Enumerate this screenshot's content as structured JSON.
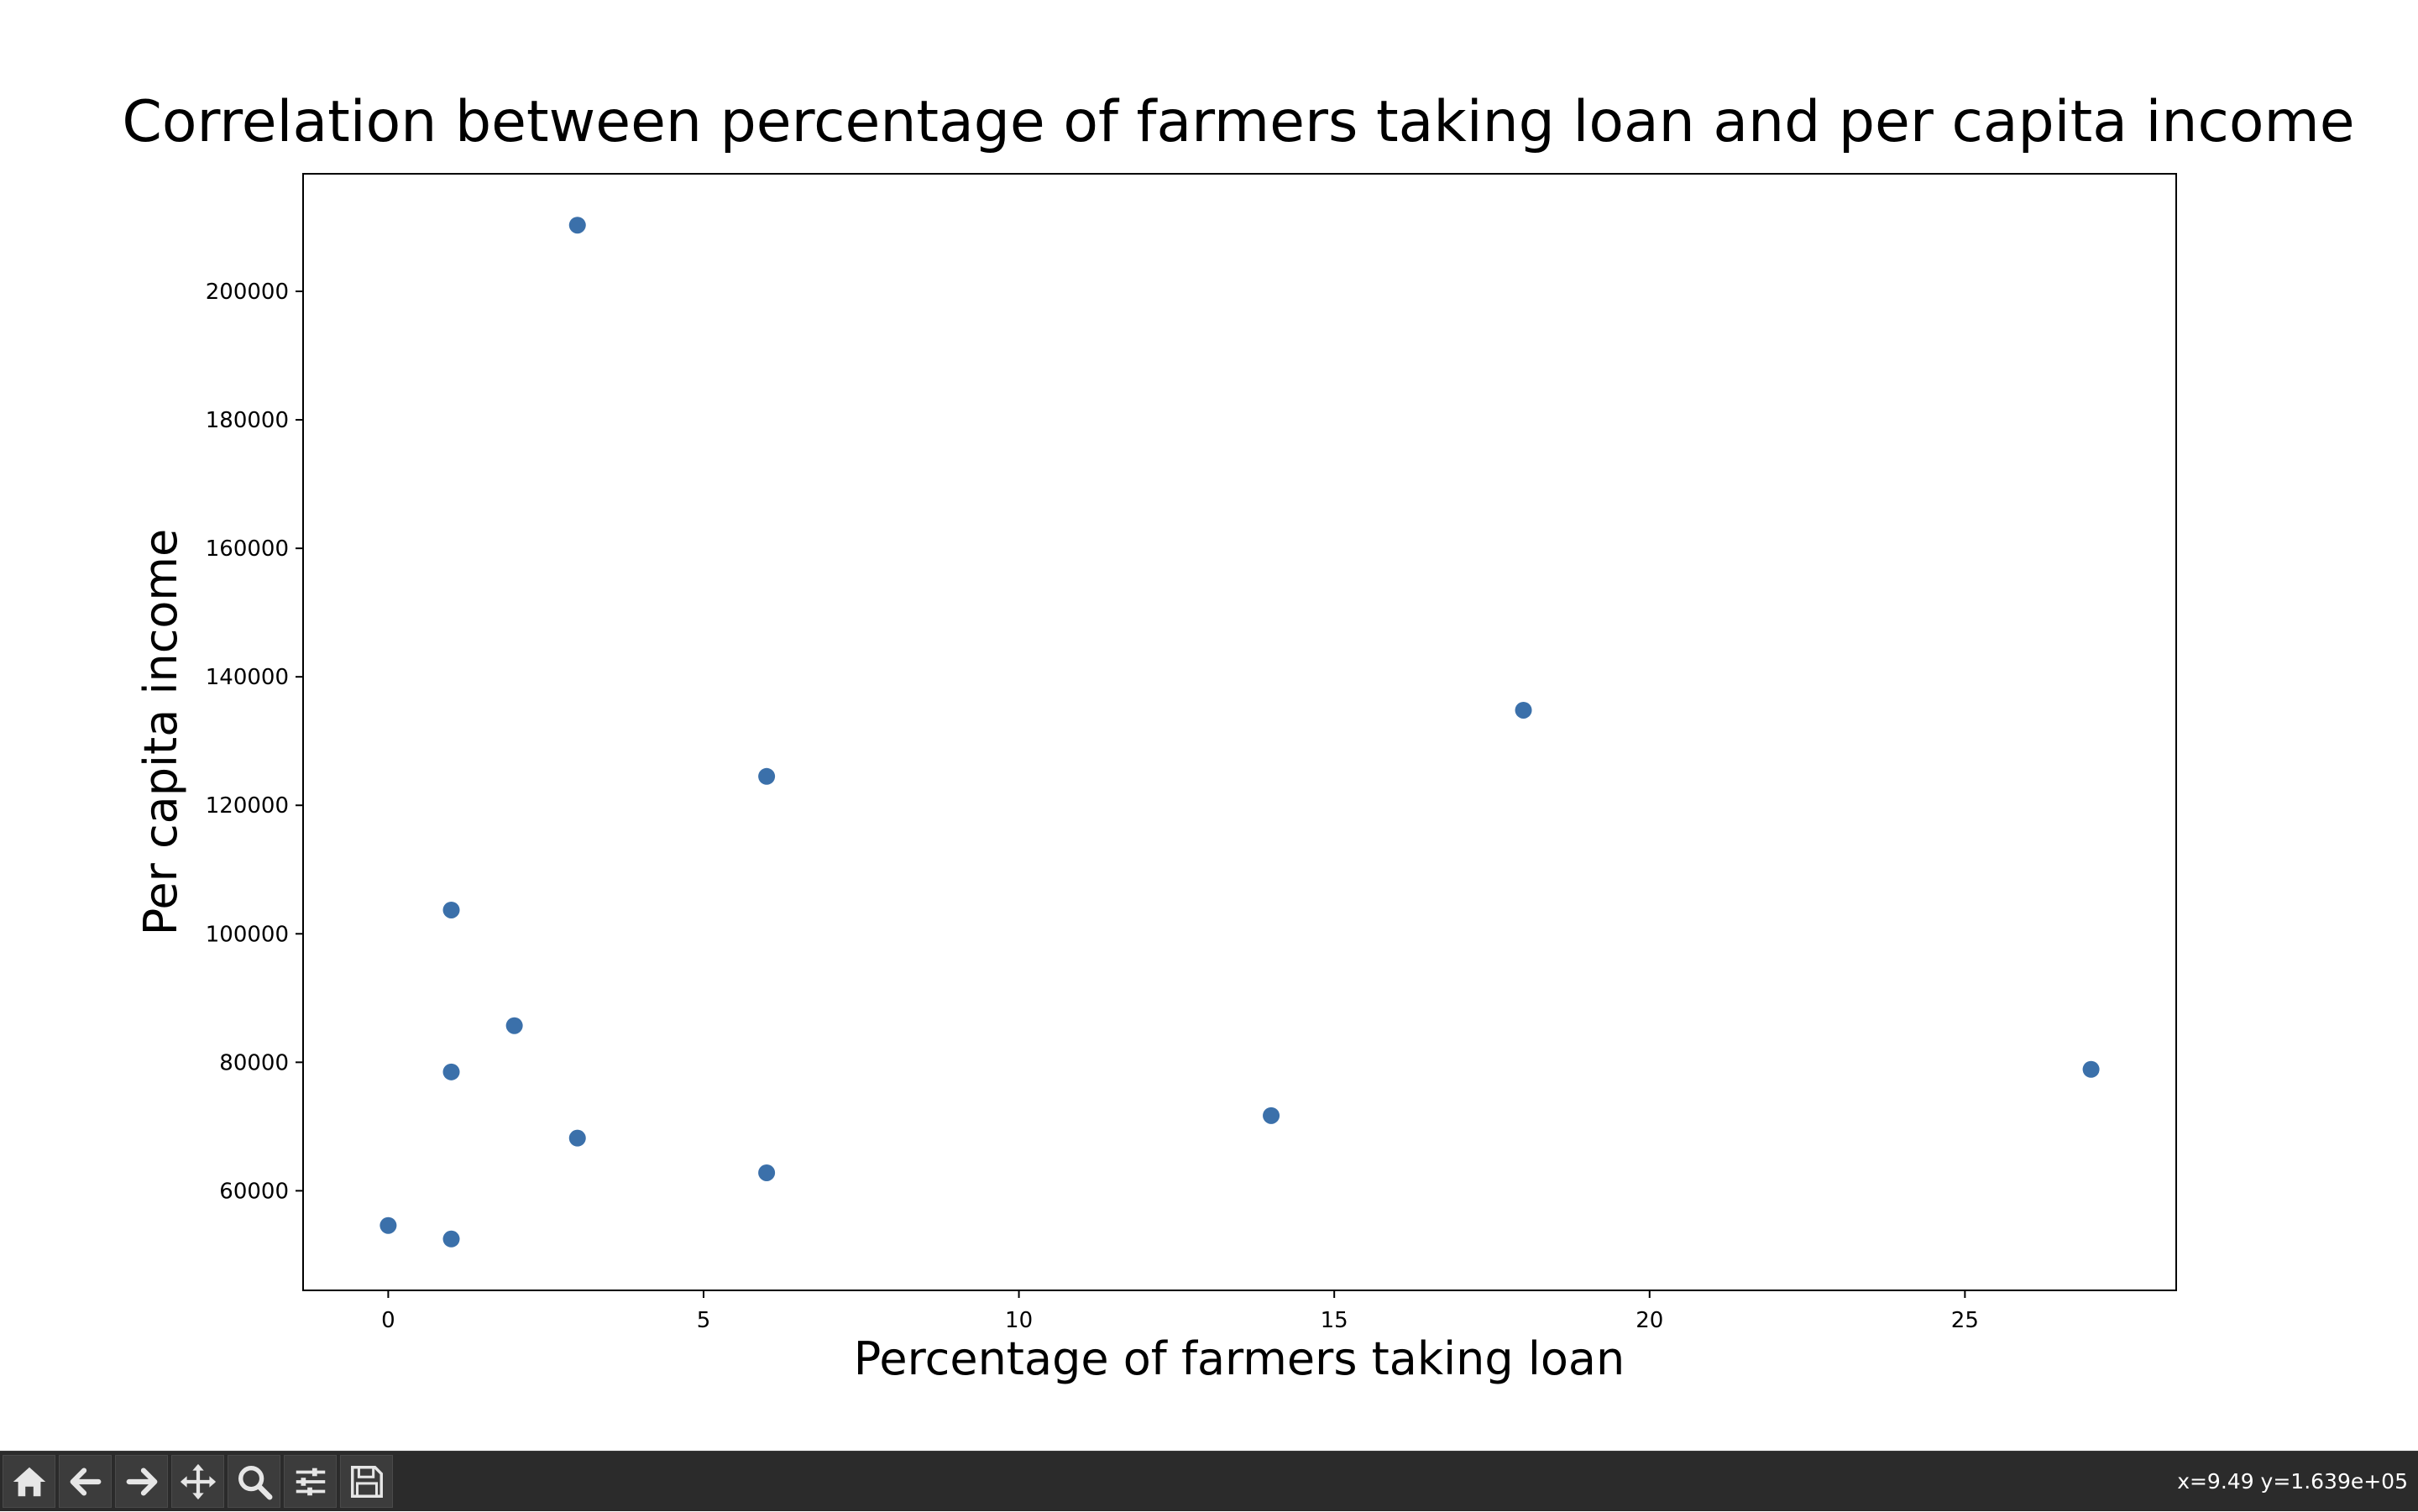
{
  "chart_data": {
    "type": "scatter",
    "title": "Correlation between percentage of farmers taking loan and per capita income",
    "xlabel": "Percentage of farmers taking loan",
    "ylabel": "Per capita income",
    "xlim": [
      -1.35,
      28.35
    ],
    "ylim": [
      44500,
      218300
    ],
    "xticks": [
      0,
      5,
      10,
      15,
      20,
      25
    ],
    "yticks": [
      60000,
      80000,
      100000,
      120000,
      140000,
      160000,
      180000,
      200000
    ],
    "grid": false,
    "marker_color": "#3b70aa",
    "points": [
      {
        "x": 3,
        "y": 210300
      },
      {
        "x": 18,
        "y": 134800
      },
      {
        "x": 6,
        "y": 124500
      },
      {
        "x": 1,
        "y": 103700
      },
      {
        "x": 2,
        "y": 85700
      },
      {
        "x": 1,
        "y": 78500
      },
      {
        "x": 27,
        "y": 78900
      },
      {
        "x": 14,
        "y": 71700
      },
      {
        "x": 3,
        "y": 68200
      },
      {
        "x": 6,
        "y": 62800
      },
      {
        "x": 0,
        "y": 54600
      },
      {
        "x": 1,
        "y": 52500
      }
    ]
  },
  "toolbar": {
    "buttons": [
      {
        "id": "home",
        "icon": "home-icon"
      },
      {
        "id": "back",
        "icon": "arrow-left-icon"
      },
      {
        "id": "forward",
        "icon": "arrow-right-icon"
      },
      {
        "id": "pan",
        "icon": "move-icon"
      },
      {
        "id": "zoom",
        "icon": "magnifier-icon"
      },
      {
        "id": "configure",
        "icon": "sliders-icon"
      },
      {
        "id": "save",
        "icon": "floppy-disk-icon"
      }
    ],
    "coords": "x=9.49 y=1.639e+05"
  }
}
